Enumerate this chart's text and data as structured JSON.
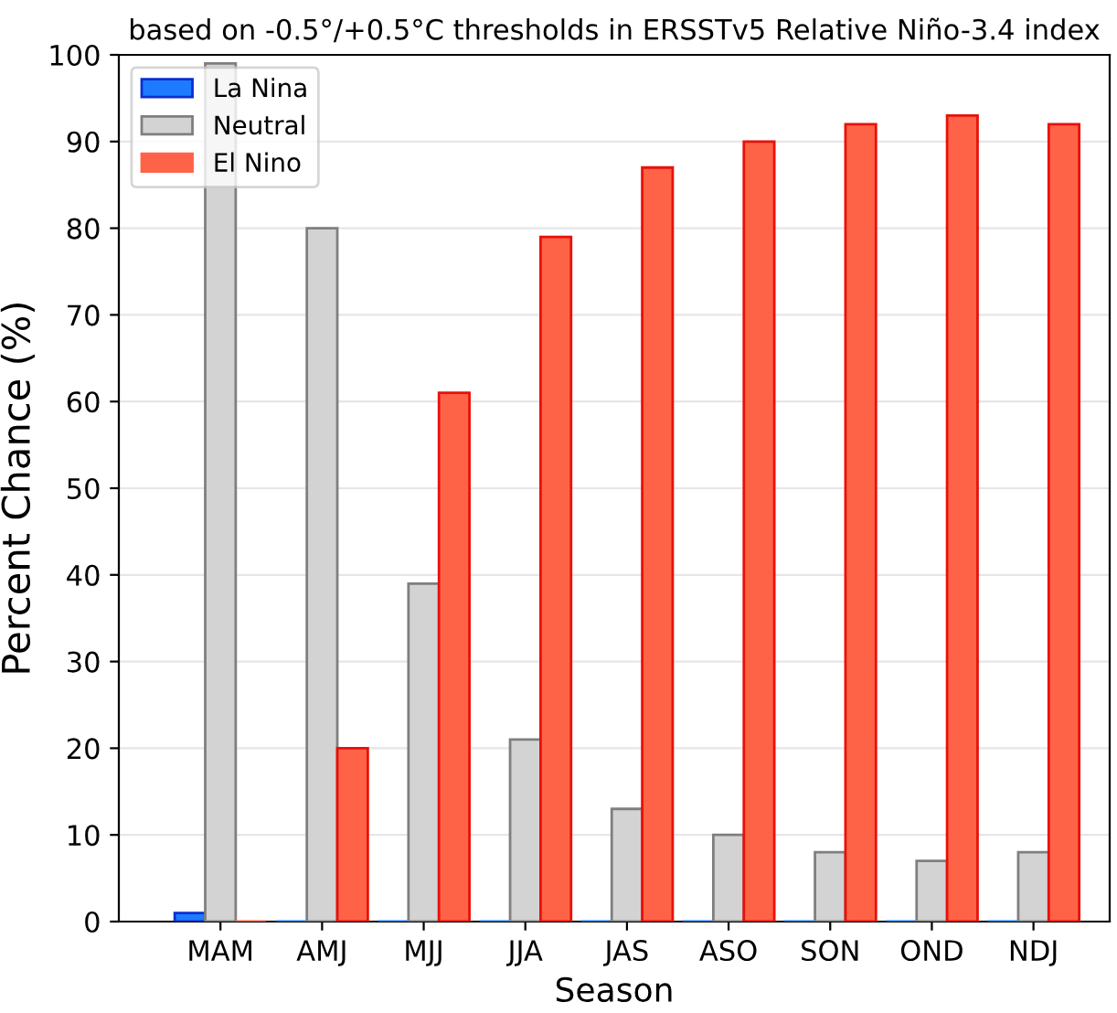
{
  "chart_data": {
    "type": "bar",
    "title": "based on -0.5°/+0.5°C thresholds in ERSSTv5 Relative Niño-3.4 index",
    "xlabel": "Season",
    "ylabel": "Percent Chance (%)",
    "categories": [
      "MAM",
      "AMJ",
      "MJJ",
      "JJA",
      "JAS",
      "ASO",
      "SON",
      "OND",
      "NDJ"
    ],
    "series": [
      {
        "name": "La Nina",
        "color": "#1e7bff",
        "values": [
          1,
          0,
          0,
          0,
          0,
          0,
          0,
          0,
          0
        ]
      },
      {
        "name": "Neutral",
        "color": "#d3d3d3",
        "values": [
          99,
          80,
          39,
          21,
          13,
          10,
          8,
          7,
          8
        ]
      },
      {
        "name": "El Nino",
        "color": "#ff6347",
        "values": [
          0,
          20,
          61,
          79,
          87,
          90,
          92,
          93,
          92
        ]
      }
    ],
    "ylim": [
      0,
      100
    ],
    "yticks": [
      0,
      10,
      20,
      30,
      40,
      50,
      60,
      70,
      80,
      90,
      100
    ],
    "grid": "y",
    "legend": "top left"
  }
}
